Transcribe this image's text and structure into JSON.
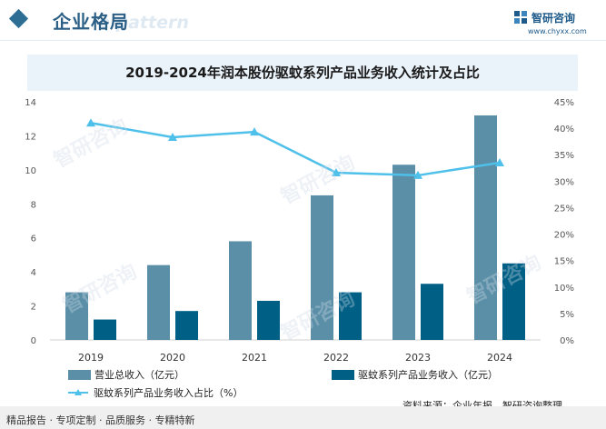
{
  "header": {
    "section_title": "企业格局",
    "watermark_text": "e pattern",
    "logo_name": "智研咨询",
    "logo_url": "www.chyxx.com",
    "logo_icon": "zhiyan-logo-icon"
  },
  "watermark": {
    "text": "智研咨询"
  },
  "chart_data": {
    "type": "bar",
    "title": "2019-2024年润本股份驱蚊系列产品业务收入统计及占比",
    "categories": [
      "2019",
      "2020",
      "2021",
      "2022",
      "2023",
      "2024"
    ],
    "series": [
      {
        "name": "营业总收入（亿元）",
        "kind": "bar",
        "axis": "left",
        "color": "#5b8fa8",
        "values": [
          2.8,
          4.4,
          5.8,
          8.5,
          10.3,
          13.2
        ]
      },
      {
        "name": "驱蚊系列产品业务收入（亿元）",
        "kind": "bar",
        "axis": "left",
        "color": "#005f85",
        "values": [
          1.2,
          1.7,
          2.3,
          2.8,
          3.3,
          4.5
        ]
      },
      {
        "name": "驱蚊系列产品业务收入占比（%）",
        "kind": "line",
        "axis": "right",
        "color": "#4ec0ea",
        "marker": "triangle",
        "values": [
          41,
          38.3,
          39.3,
          31.6,
          31.1,
          33.5
        ]
      }
    ],
    "y_left": {
      "min": 0,
      "max": 14,
      "ticks": [
        "0",
        "2",
        "4",
        "6",
        "8",
        "10",
        "12",
        "14"
      ]
    },
    "y_right": {
      "min": 0,
      "max": 45,
      "ticks": [
        "0%",
        "5%",
        "10%",
        "15%",
        "20%",
        "25%",
        "30%",
        "35%",
        "40%",
        "45%"
      ]
    },
    "grid": false,
    "legend_position": "bottom"
  },
  "footer": {
    "tagline": "精品报告 · 专项定制 · 品质服务 · 专精特新",
    "source": "资料来源：企业年报，智研咨询整理"
  },
  "colors": {
    "brand": "#2b5f86",
    "title_band": "#eaf2fa",
    "footer_bg": "#f0f0f0"
  }
}
